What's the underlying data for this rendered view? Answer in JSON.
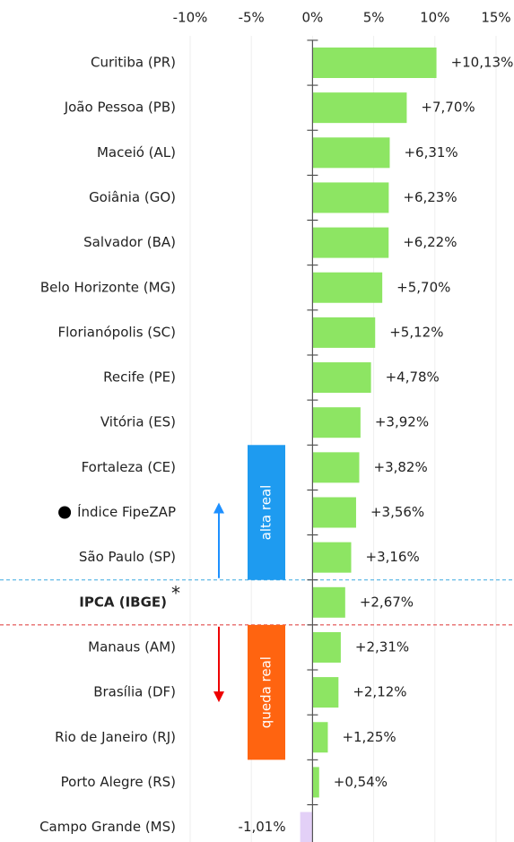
{
  "chart_data": {
    "type": "hbar",
    "categories": [
      "Curitiba (PR)",
      "João Pessoa (PB)",
      "Maceió (AL)",
      "Goiânia (GO)",
      "Salvador (BA)",
      "Belo Horizonte (MG)",
      "Florianópolis (SC)",
      "Recife (PE)",
      "Vitória (ES)",
      "Fortaleza (CE)",
      "Índice FipeZAP",
      "São Paulo (SP)",
      "IPCA (IBGE)",
      "Manaus (AM)",
      "Brasília (DF)",
      "Rio de Janeiro (RJ)",
      "Porto Alegre (RS)",
      "Campo Grande (MS)"
    ],
    "values": [
      10.13,
      7.7,
      6.31,
      6.23,
      6.22,
      5.7,
      5.12,
      4.78,
      3.92,
      3.82,
      3.56,
      3.16,
      2.67,
      2.31,
      2.12,
      1.25,
      0.54,
      -1.01
    ],
    "value_labels": [
      "+10,13%",
      "+7,70%",
      "+6,31%",
      "+6,23%",
      "+6,22%",
      "+5,70%",
      "+5,12%",
      "+4,78%",
      "+3,92%",
      "+3,82%",
      "+3,56%",
      "+3,16%",
      "+2,67%",
      "+2,31%",
      "+2,12%",
      "+1,25%",
      "+0,54%",
      "-1,01%"
    ],
    "color": "#8de563",
    "negative_color": "#e3d0f7",
    "xlim": [
      -10,
      15
    ],
    "xticks": [
      {
        "value": -10,
        "label": "-10%"
      },
      {
        "value": -5,
        "label": "-5%"
      },
      {
        "value": 0,
        "label": "0%"
      },
      {
        "value": 5,
        "label": "5%"
      },
      {
        "value": 10,
        "label": "10%"
      },
      {
        "value": 15,
        "label": "15%"
      }
    ],
    "grid": true,
    "reference_index": 12,
    "reference_mark": "*",
    "annotations": [
      "alta real",
      "queda real"
    ]
  }
}
